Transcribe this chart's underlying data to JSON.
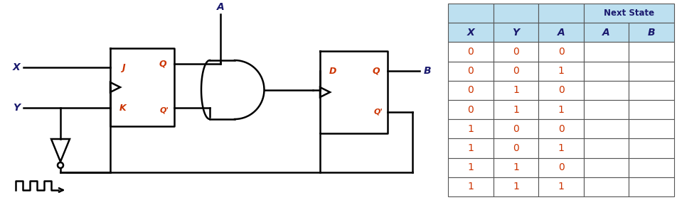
{
  "fig_width": 9.52,
  "fig_height": 2.82,
  "dpi": 100,
  "bg_color": "#ffffff",
  "table_header_bg": "#bde0f0",
  "table_body_bg": "#ffffff",
  "table_border_color": "#555555",
  "header_text_color": "#1a1a6e",
  "data_text_color": "#cc3300",
  "circuit_line_color": "#000000",
  "circuit_label_color": "#1a1a6e",
  "circuit_port_color": "#cc3300",
  "col_headers": [
    "X",
    "Y",
    "A",
    "A",
    "B"
  ],
  "row_data": [
    [
      "0",
      "0",
      "0",
      "",
      ""
    ],
    [
      "0",
      "0",
      "1",
      "",
      ""
    ],
    [
      "0",
      "1",
      "0",
      "",
      ""
    ],
    [
      "0",
      "1",
      "1",
      "",
      ""
    ],
    [
      "1",
      "0",
      "0",
      "",
      ""
    ],
    [
      "1",
      "0",
      "1",
      "",
      ""
    ],
    [
      "1",
      "1",
      "0",
      "",
      ""
    ],
    [
      "1",
      "1",
      "1",
      "",
      ""
    ]
  ],
  "next_state_label": "Next State"
}
